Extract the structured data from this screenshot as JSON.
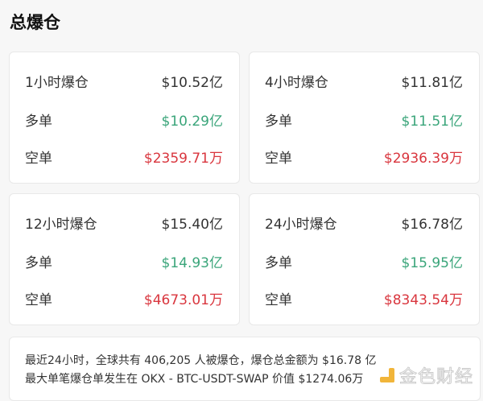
{
  "title": "总爆仓",
  "cards": [
    {
      "period": "1小时爆仓",
      "total": "$10.52亿",
      "long_label": "多单",
      "long": "$10.29亿",
      "short_label": "空单",
      "short": "$2359.71万"
    },
    {
      "period": "4小时爆仓",
      "total": "$11.81亿",
      "long_label": "多单",
      "long": "$11.51亿",
      "short_label": "空单",
      "short": "$2936.39万"
    },
    {
      "period": "12小时爆仓",
      "total": "$15.40亿",
      "long_label": "多单",
      "long": "$14.93亿",
      "short_label": "空单",
      "short": "$4673.01万"
    },
    {
      "period": "24小时爆仓",
      "total": "$16.78亿",
      "long_label": "多单",
      "long": "$15.95亿",
      "short_label": "空单",
      "short": "$8343.54万"
    }
  ],
  "summary": {
    "line1": "最近24小时，全球共有 406,205 人被爆仓，爆仓总金额为 $16.78 亿",
    "line2": "最大单笔爆仓单发生在 OKX - BTC-USDT-SWAP 价值 $1274.06万"
  },
  "watermark": {
    "text": "金色财经"
  },
  "colors": {
    "long": "#3aa57a",
    "short": "#d9363e",
    "logo": "#f1b53a"
  }
}
